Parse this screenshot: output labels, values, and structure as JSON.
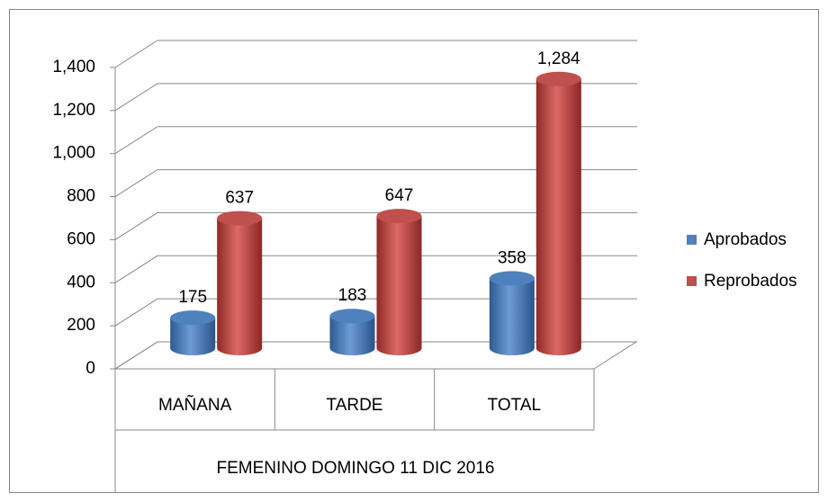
{
  "chart_data": {
    "type": "bar3d",
    "categories": [
      "MAÑANA",
      "TARDE",
      "TOTAL"
    ],
    "xlabel": "FEMENINO DOMINGO 11 DIC 2016",
    "series": [
      {
        "name": "Aprobados",
        "color": "#4f81bd",
        "values": [
          175,
          183,
          358
        ]
      },
      {
        "name": "Reprobados",
        "color": "#c0504d",
        "values": [
          637,
          647,
          1284
        ],
        "value_labels": [
          "637",
          "647",
          "1,284"
        ]
      }
    ],
    "ylim": [
      0,
      1400
    ],
    "yticks": [
      0,
      200,
      400,
      600,
      800,
      {
        "value": 1000,
        "label": "1,000"
      },
      {
        "value": 1200,
        "label": "1,200"
      },
      {
        "value": 1400,
        "label": "1,400"
      }
    ],
    "grid": true,
    "legend": "right"
  }
}
